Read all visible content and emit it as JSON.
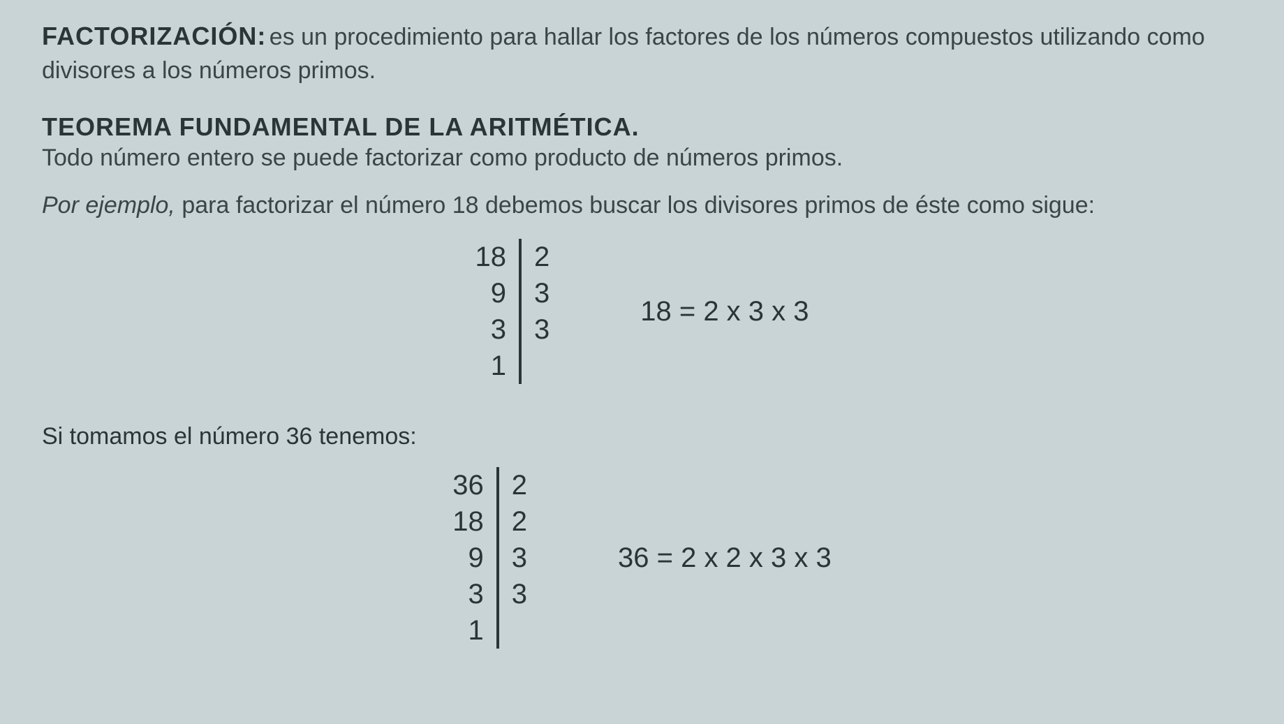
{
  "section1": {
    "title": "FACTORIZACIÓN:",
    "text": "es un procedimiento para hallar los factores de los números compuestos utilizando como divisores a los números primos."
  },
  "section2": {
    "title": "TEOREMA FUNDAMENTAL DE LA ARITMÉTICA.",
    "text": "Todo número entero se puede factorizar como producto de números primos."
  },
  "example_intro": {
    "italic_lead": "Por ejemplo,",
    "rest": "para factorizar el número 18 debemos buscar los divisores primos de éste como sigue:"
  },
  "factor18": {
    "left": [
      "18",
      "9",
      "3",
      "1"
    ],
    "right": [
      "2",
      "3",
      "3",
      ""
    ],
    "result": "18 = 2 x 3 x 3"
  },
  "subheading36": "Si tomamos el número 36 tenemos:",
  "factor36": {
    "left": [
      "36",
      "18",
      "9",
      "3",
      "1"
    ],
    "right": [
      "2",
      "2",
      "3",
      "3",
      ""
    ],
    "result": "36 = 2 x 2 x 3 x 3"
  },
  "style": {
    "background_color": "#c8d4d6",
    "text_color": "#2a3538",
    "line_color": "#2a3538",
    "heading_fontsize": 36,
    "body_fontsize": 34,
    "math_fontsize": 40
  }
}
